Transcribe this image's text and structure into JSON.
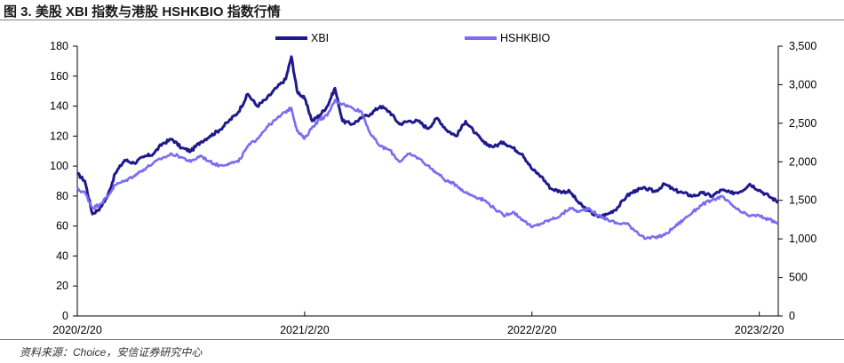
{
  "title": "图 3. 美股 XBI 指数与港股 HSHKBIO 指数行情",
  "source": "资料来源：Choice，安信证券研究中心",
  "chart_data": {
    "type": "line",
    "x_tick_labels": [
      "2020/2/20",
      "2021/2/20",
      "2022/2/20",
      "2023/2/20"
    ],
    "x_ticks": [
      0,
      12,
      24,
      36
    ],
    "xlim": [
      0,
      37
    ],
    "left_axis": {
      "ylim": [
        0,
        180
      ],
      "ticks": [
        0,
        20,
        40,
        60,
        80,
        100,
        120,
        140,
        160,
        180
      ]
    },
    "right_axis": {
      "ylim": [
        0,
        3500
      ],
      "ticks": [
        "0",
        "500",
        "1,000",
        "1,500",
        "2,000",
        "2,500",
        "3,000",
        "3,500"
      ],
      "tick_values": [
        0,
        500,
        1000,
        1500,
        2000,
        2500,
        3000,
        3500
      ]
    },
    "grid": false,
    "legend_position": "top-center",
    "series": [
      {
        "name": "XBI",
        "axis": "left",
        "color": "#1f1a8c",
        "x": [
          0,
          0.4,
          0.8,
          1.2,
          1.6,
          2,
          2.5,
          3,
          3.5,
          4,
          4.5,
          5,
          5.5,
          6,
          6.5,
          7,
          7.5,
          8,
          8.5,
          9,
          9.5,
          10,
          10.5,
          11,
          11.3,
          11.6,
          12,
          12.4,
          12.8,
          13.2,
          13.6,
          14,
          14.5,
          15,
          15.5,
          16,
          16.5,
          17,
          17.5,
          18,
          18.5,
          19,
          19.5,
          20,
          20.5,
          21,
          21.5,
          22,
          22.5,
          23,
          23.5,
          24,
          24.5,
          25,
          25.5,
          26,
          26.5,
          27,
          27.5,
          28,
          28.5,
          29,
          29.5,
          30,
          30.5,
          31,
          31.5,
          32,
          32.5,
          33,
          33.5,
          34,
          34.5,
          35,
          35.5,
          36,
          36.5,
          37
        ],
        "values": [
          95,
          90,
          68,
          72,
          80,
          95,
          104,
          102,
          106,
          108,
          115,
          118,
          112,
          110,
          116,
          120,
          124,
          130,
          136,
          148,
          140,
          145,
          152,
          158,
          173,
          150,
          145,
          130,
          134,
          140,
          152,
          130,
          128,
          132,
          135,
          140,
          136,
          128,
          130,
          130,
          125,
          132,
          124,
          120,
          130,
          122,
          115,
          113,
          116,
          112,
          108,
          98,
          93,
          85,
          83,
          83,
          75,
          70,
          66,
          68,
          72,
          80,
          84,
          85,
          83,
          88,
          84,
          82,
          80,
          82,
          80,
          84,
          82,
          83,
          88,
          84,
          80,
          76
        ]
      },
      {
        "name": "HSHKBIO",
        "axis": "right",
        "color": "#7b6cf0",
        "x": [
          0,
          0.4,
          0.8,
          1.2,
          1.6,
          2,
          2.5,
          3,
          3.5,
          4,
          4.5,
          5,
          5.5,
          6,
          6.5,
          7,
          7.5,
          8,
          8.5,
          9,
          9.5,
          10,
          10.5,
          11,
          11.3,
          11.6,
          12,
          12.4,
          12.8,
          13.2,
          13.6,
          14,
          14.5,
          15,
          15.5,
          16,
          16.5,
          17,
          17.5,
          18,
          18.5,
          19,
          19.5,
          20,
          20.5,
          21,
          21.5,
          22,
          22.5,
          23,
          23.5,
          24,
          24.5,
          25,
          25.5,
          26,
          26.5,
          27,
          27.5,
          28,
          28.5,
          29,
          29.5,
          30,
          30.5,
          31,
          31.5,
          32,
          32.5,
          33,
          33.5,
          34,
          34.5,
          35,
          35.5,
          36,
          36.5,
          37
        ],
        "values": [
          1640,
          1600,
          1400,
          1450,
          1550,
          1700,
          1750,
          1820,
          1900,
          1980,
          2050,
          2100,
          2060,
          2000,
          2080,
          2000,
          1950,
          1980,
          2000,
          2200,
          2300,
          2450,
          2550,
          2650,
          2700,
          2400,
          2300,
          2450,
          2550,
          2600,
          2800,
          2750,
          2700,
          2650,
          2350,
          2200,
          2150,
          2000,
          2100,
          2050,
          1950,
          1850,
          1750,
          1700,
          1600,
          1550,
          1500,
          1400,
          1300,
          1350,
          1250,
          1150,
          1200,
          1250,
          1300,
          1400,
          1350,
          1400,
          1300,
          1250,
          1200,
          1200,
          1100,
          1000,
          1020,
          1050,
          1150,
          1250,
          1350,
          1450,
          1500,
          1550,
          1450,
          1350,
          1300,
          1300,
          1250,
          1200
        ]
      }
    ]
  }
}
